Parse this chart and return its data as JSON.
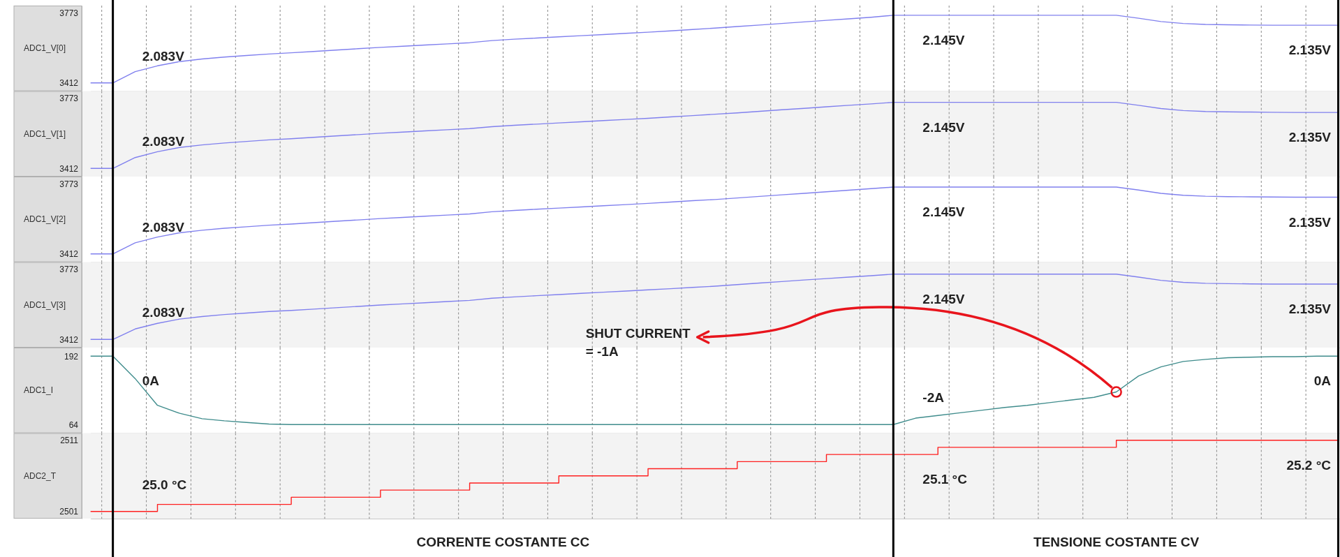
{
  "chart_data": [
    {
      "type": "line",
      "ylabel": "ADC1_V[0]",
      "categories": [
        null,
        null,
        null,
        null,
        null,
        null,
        null,
        null,
        null,
        null,
        null,
        null,
        null,
        null,
        null,
        null,
        null,
        null,
        null,
        null,
        null,
        null,
        null,
        null,
        null,
        null,
        null,
        null,
        null,
        null,
        null,
        null,
        null,
        null,
        null,
        null,
        null,
        null,
        null,
        null,
        null,
        null,
        null,
        null,
        null,
        null,
        null,
        null,
        null,
        null,
        null,
        null,
        null,
        null,
        null,
        null,
        null
      ],
      "series": [
        {
          "color": "#8080ee",
          "values": [
            3412,
            3412,
            3470,
            3500,
            3522,
            3535,
            3545,
            3553,
            3561,
            3567,
            3574,
            3581,
            3588,
            3595,
            3601,
            3607,
            3613,
            3619,
            3630,
            3637,
            3643,
            3649,
            3655,
            3661,
            3667,
            3673,
            3680,
            3687,
            3694,
            3702,
            3710,
            3718,
            3726,
            3734,
            3742,
            3750,
            3760,
            3760,
            3760,
            3760,
            3760,
            3760,
            3760,
            3760,
            3760,
            3760,
            3760,
            3745,
            3728,
            3718,
            3713,
            3711,
            3710,
            3709,
            3709,
            3709,
            3709
          ]
        }
      ],
      "ylim": [
        3370,
        3810
      ],
      "yticks": [
        3412,
        3773
      ],
      "tick_labels": "y",
      "grid": "x",
      "annotations": [
        "2.083V",
        "2.145V",
        "2.135V"
      ]
    },
    {
      "type": "line",
      "ylabel": "ADC1_V[1]",
      "categories": [
        null,
        null,
        null,
        null,
        null,
        null,
        null,
        null,
        null,
        null,
        null,
        null,
        null,
        null,
        null,
        null,
        null,
        null,
        null,
        null,
        null,
        null,
        null,
        null,
        null,
        null,
        null,
        null,
        null,
        null,
        null,
        null,
        null,
        null,
        null,
        null,
        null,
        null,
        null,
        null,
        null,
        null,
        null,
        null,
        null,
        null,
        null,
        null,
        null,
        null,
        null,
        null,
        null,
        null,
        null,
        null,
        null
      ],
      "series": [
        {
          "color": "#8080ee",
          "values": [
            3412,
            3412,
            3468,
            3498,
            3520,
            3533,
            3543,
            3551,
            3559,
            3565,
            3572,
            3579,
            3586,
            3593,
            3599,
            3605,
            3611,
            3617,
            3627,
            3634,
            3640,
            3646,
            3652,
            3658,
            3664,
            3670,
            3677,
            3684,
            3691,
            3698,
            3706,
            3714,
            3721,
            3729,
            3737,
            3744,
            3752,
            3752,
            3752,
            3752,
            3752,
            3752,
            3752,
            3752,
            3752,
            3752,
            3752,
            3737,
            3720,
            3710,
            3705,
            3703,
            3702,
            3701,
            3700,
            3700,
            3700
          ]
        }
      ],
      "ylim": [
        3370,
        3810
      ],
      "yticks": [
        3412,
        3773
      ],
      "tick_labels": "y",
      "grid": "x",
      "annotations": [
        "2.083V",
        "2.145V",
        "2.135V"
      ]
    },
    {
      "type": "line",
      "ylabel": "ADC1_V[2]",
      "categories": [
        null,
        null,
        null,
        null,
        null,
        null,
        null,
        null,
        null,
        null,
        null,
        null,
        null,
        null,
        null,
        null,
        null,
        null,
        null,
        null,
        null,
        null,
        null,
        null,
        null,
        null,
        null,
        null,
        null,
        null,
        null,
        null,
        null,
        null,
        null,
        null,
        null,
        null,
        null,
        null,
        null,
        null,
        null,
        null,
        null,
        null,
        null,
        null,
        null,
        null,
        null,
        null,
        null,
        null,
        null,
        null,
        null
      ],
      "series": [
        {
          "color": "#8080ee",
          "values": [
            3412,
            3412,
            3469,
            3499,
            3521,
            3534,
            3544,
            3552,
            3560,
            3566,
            3573,
            3580,
            3587,
            3594,
            3600,
            3606,
            3612,
            3618,
            3629,
            3636,
            3642,
            3648,
            3654,
            3660,
            3666,
            3672,
            3679,
            3686,
            3692,
            3700,
            3708,
            3716,
            3724,
            3732,
            3740,
            3748,
            3756,
            3756,
            3756,
            3756,
            3756,
            3756,
            3756,
            3756,
            3756,
            3756,
            3756,
            3741,
            3724,
            3714,
            3709,
            3707,
            3706,
            3705,
            3704,
            3704,
            3704
          ]
        }
      ],
      "ylim": [
        3370,
        3810
      ],
      "yticks": [
        3412,
        3773
      ],
      "tick_labels": "y",
      "grid": "x",
      "annotations": [
        "2.083V",
        "2.145V",
        "2.135V"
      ]
    },
    {
      "type": "line",
      "ylabel": "ADC1_V[3]",
      "categories": [
        null,
        null,
        null,
        null,
        null,
        null,
        null,
        null,
        null,
        null,
        null,
        null,
        null,
        null,
        null,
        null,
        null,
        null,
        null,
        null,
        null,
        null,
        null,
        null,
        null,
        null,
        null,
        null,
        null,
        null,
        null,
        null,
        null,
        null,
        null,
        null,
        null,
        null,
        null,
        null,
        null,
        null,
        null,
        null,
        null,
        null,
        null,
        null,
        null,
        null,
        null,
        null,
        null,
        null,
        null,
        null,
        null
      ],
      "series": [
        {
          "color": "#8080ee",
          "values": [
            3412,
            3412,
            3466,
            3495,
            3517,
            3530,
            3540,
            3548,
            3556,
            3561,
            3568,
            3575,
            3582,
            3589,
            3595,
            3601,
            3607,
            3613,
            3624,
            3631,
            3637,
            3643,
            3649,
            3655,
            3661,
            3667,
            3673,
            3680,
            3686,
            3694,
            3702,
            3710,
            3718,
            3725,
            3733,
            3740,
            3748,
            3748,
            3748,
            3748,
            3748,
            3748,
            3748,
            3748,
            3748,
            3748,
            3748,
            3733,
            3716,
            3706,
            3701,
            3699,
            3698,
            3697,
            3697,
            3697,
            3697
          ]
        }
      ],
      "ylim": [
        3370,
        3810
      ],
      "yticks": [
        3412,
        3773
      ],
      "tick_labels": "y",
      "grid": "x",
      "annotations": [
        "2.083V",
        "2.145V",
        "2.135V"
      ]
    },
    {
      "type": "line",
      "ylabel": "ADC1_I",
      "categories": [
        null,
        null,
        null,
        null,
        null,
        null,
        null,
        null,
        null,
        null,
        null,
        null,
        null,
        null,
        null,
        null,
        null,
        null,
        null,
        null,
        null,
        null,
        null,
        null,
        null,
        null,
        null,
        null,
        null,
        null,
        null,
        null,
        null,
        null,
        null,
        null,
        null,
        null,
        null,
        null,
        null,
        null,
        null,
        null,
        null,
        null,
        null,
        null,
        null,
        null,
        null,
        null,
        null,
        null,
        null,
        null,
        null
      ],
      "series": [
        {
          "color": "#3f8c8c",
          "values": [
            192,
            192,
            150,
            100,
            85,
            75,
            71,
            68,
            65,
            64,
            64,
            64,
            64,
            64,
            64,
            64,
            64,
            64,
            64,
            64,
            64,
            64,
            64,
            64,
            64,
            64,
            64,
            64,
            64,
            64,
            64,
            64,
            64,
            64,
            64,
            64,
            64,
            76,
            81,
            86,
            91,
            96,
            100,
            105,
            110,
            115,
            125,
            155,
            172,
            182,
            186,
            189,
            190,
            191,
            191,
            192,
            192
          ]
        }
      ],
      "ylim": [
        48,
        208
      ],
      "yticks": [
        64,
        192
      ],
      "tick_labels": "y",
      "grid": "x",
      "annotations": [
        "0A",
        "-2A",
        "0A",
        "SHUT CURRENT\n= -1A"
      ]
    },
    {
      "type": "step",
      "ylabel": "ADC2_T",
      "categories": [
        null,
        null,
        null,
        null,
        null,
        null,
        null,
        null,
        null,
        null,
        null,
        null,
        null,
        null,
        null,
        null,
        null,
        null,
        null,
        null,
        null,
        null,
        null,
        null,
        null,
        null,
        null,
        null,
        null,
        null,
        null,
        null,
        null,
        null,
        null,
        null,
        null,
        null,
        null,
        null,
        null,
        null,
        null,
        null,
        null,
        null,
        null,
        null,
        null,
        null,
        null,
        null,
        null,
        null,
        null,
        null,
        null
      ],
      "series": [
        {
          "color": "#ff2020",
          "values": [
            2501,
            2501,
            2501,
            2502,
            2502,
            2502,
            2502,
            2502,
            2502,
            2503,
            2503,
            2503,
            2503,
            2504,
            2504,
            2504,
            2504,
            2505,
            2505,
            2505,
            2505,
            2506,
            2506,
            2506,
            2506,
            2507,
            2507,
            2507,
            2507,
            2508,
            2508,
            2508,
            2508,
            2509,
            2509,
            2509,
            2509,
            2509,
            2510,
            2510,
            2510,
            2510,
            2510,
            2510,
            2510,
            2510,
            2511,
            2511,
            2511,
            2511,
            2511,
            2511,
            2511,
            2511,
            2511,
            2511,
            2511
          ]
        }
      ],
      "ylim": [
        2500,
        2512
      ],
      "yticks": [
        2501,
        2511
      ],
      "tick_labels": "y",
      "grid": "x",
      "annotations": [
        "25.0 °C",
        "25.1 °C",
        "25.2 °C",
        "CORRENTE COSTANTE CC",
        "TENSIONE COSTANTE CV"
      ]
    }
  ]
}
